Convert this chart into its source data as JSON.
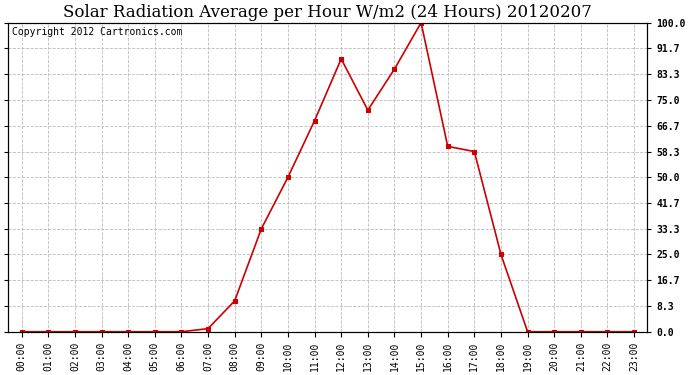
{
  "title": "Solar Radiation Average per Hour W/m2 (24 Hours) 20120207",
  "copyright_text": "Copyright 2012 Cartronics.com",
  "hours": [
    "00:00",
    "01:00",
    "02:00",
    "03:00",
    "04:00",
    "05:00",
    "06:00",
    "07:00",
    "08:00",
    "09:00",
    "10:00",
    "11:00",
    "12:00",
    "13:00",
    "14:00",
    "15:00",
    "16:00",
    "17:00",
    "18:00",
    "19:00",
    "20:00",
    "21:00",
    "22:00",
    "23:00"
  ],
  "values": [
    0.0,
    0.0,
    0.0,
    0.0,
    0.0,
    0.0,
    0.0,
    1.0,
    10.0,
    33.3,
    50.0,
    68.3,
    88.3,
    71.7,
    85.0,
    100.0,
    60.0,
    58.3,
    25.0,
    0.0,
    0.0,
    0.0,
    0.0,
    0.0
  ],
  "line_color": "#cc0000",
  "marker": "s",
  "marker_size": 3,
  "marker_color": "#cc0000",
  "ylim": [
    0.0,
    100.0
  ],
  "yticks": [
    0.0,
    8.3,
    16.7,
    25.0,
    33.3,
    41.7,
    50.0,
    58.3,
    66.7,
    75.0,
    83.3,
    91.7,
    100.0
  ],
  "background_color": "#ffffff",
  "plot_bg_color": "#ffffff",
  "grid_color": "#bbbbbb",
  "title_fontsize": 12,
  "copyright_fontsize": 7,
  "tick_fontsize": 7,
  "fig_width": 6.9,
  "fig_height": 3.75,
  "dpi": 100
}
